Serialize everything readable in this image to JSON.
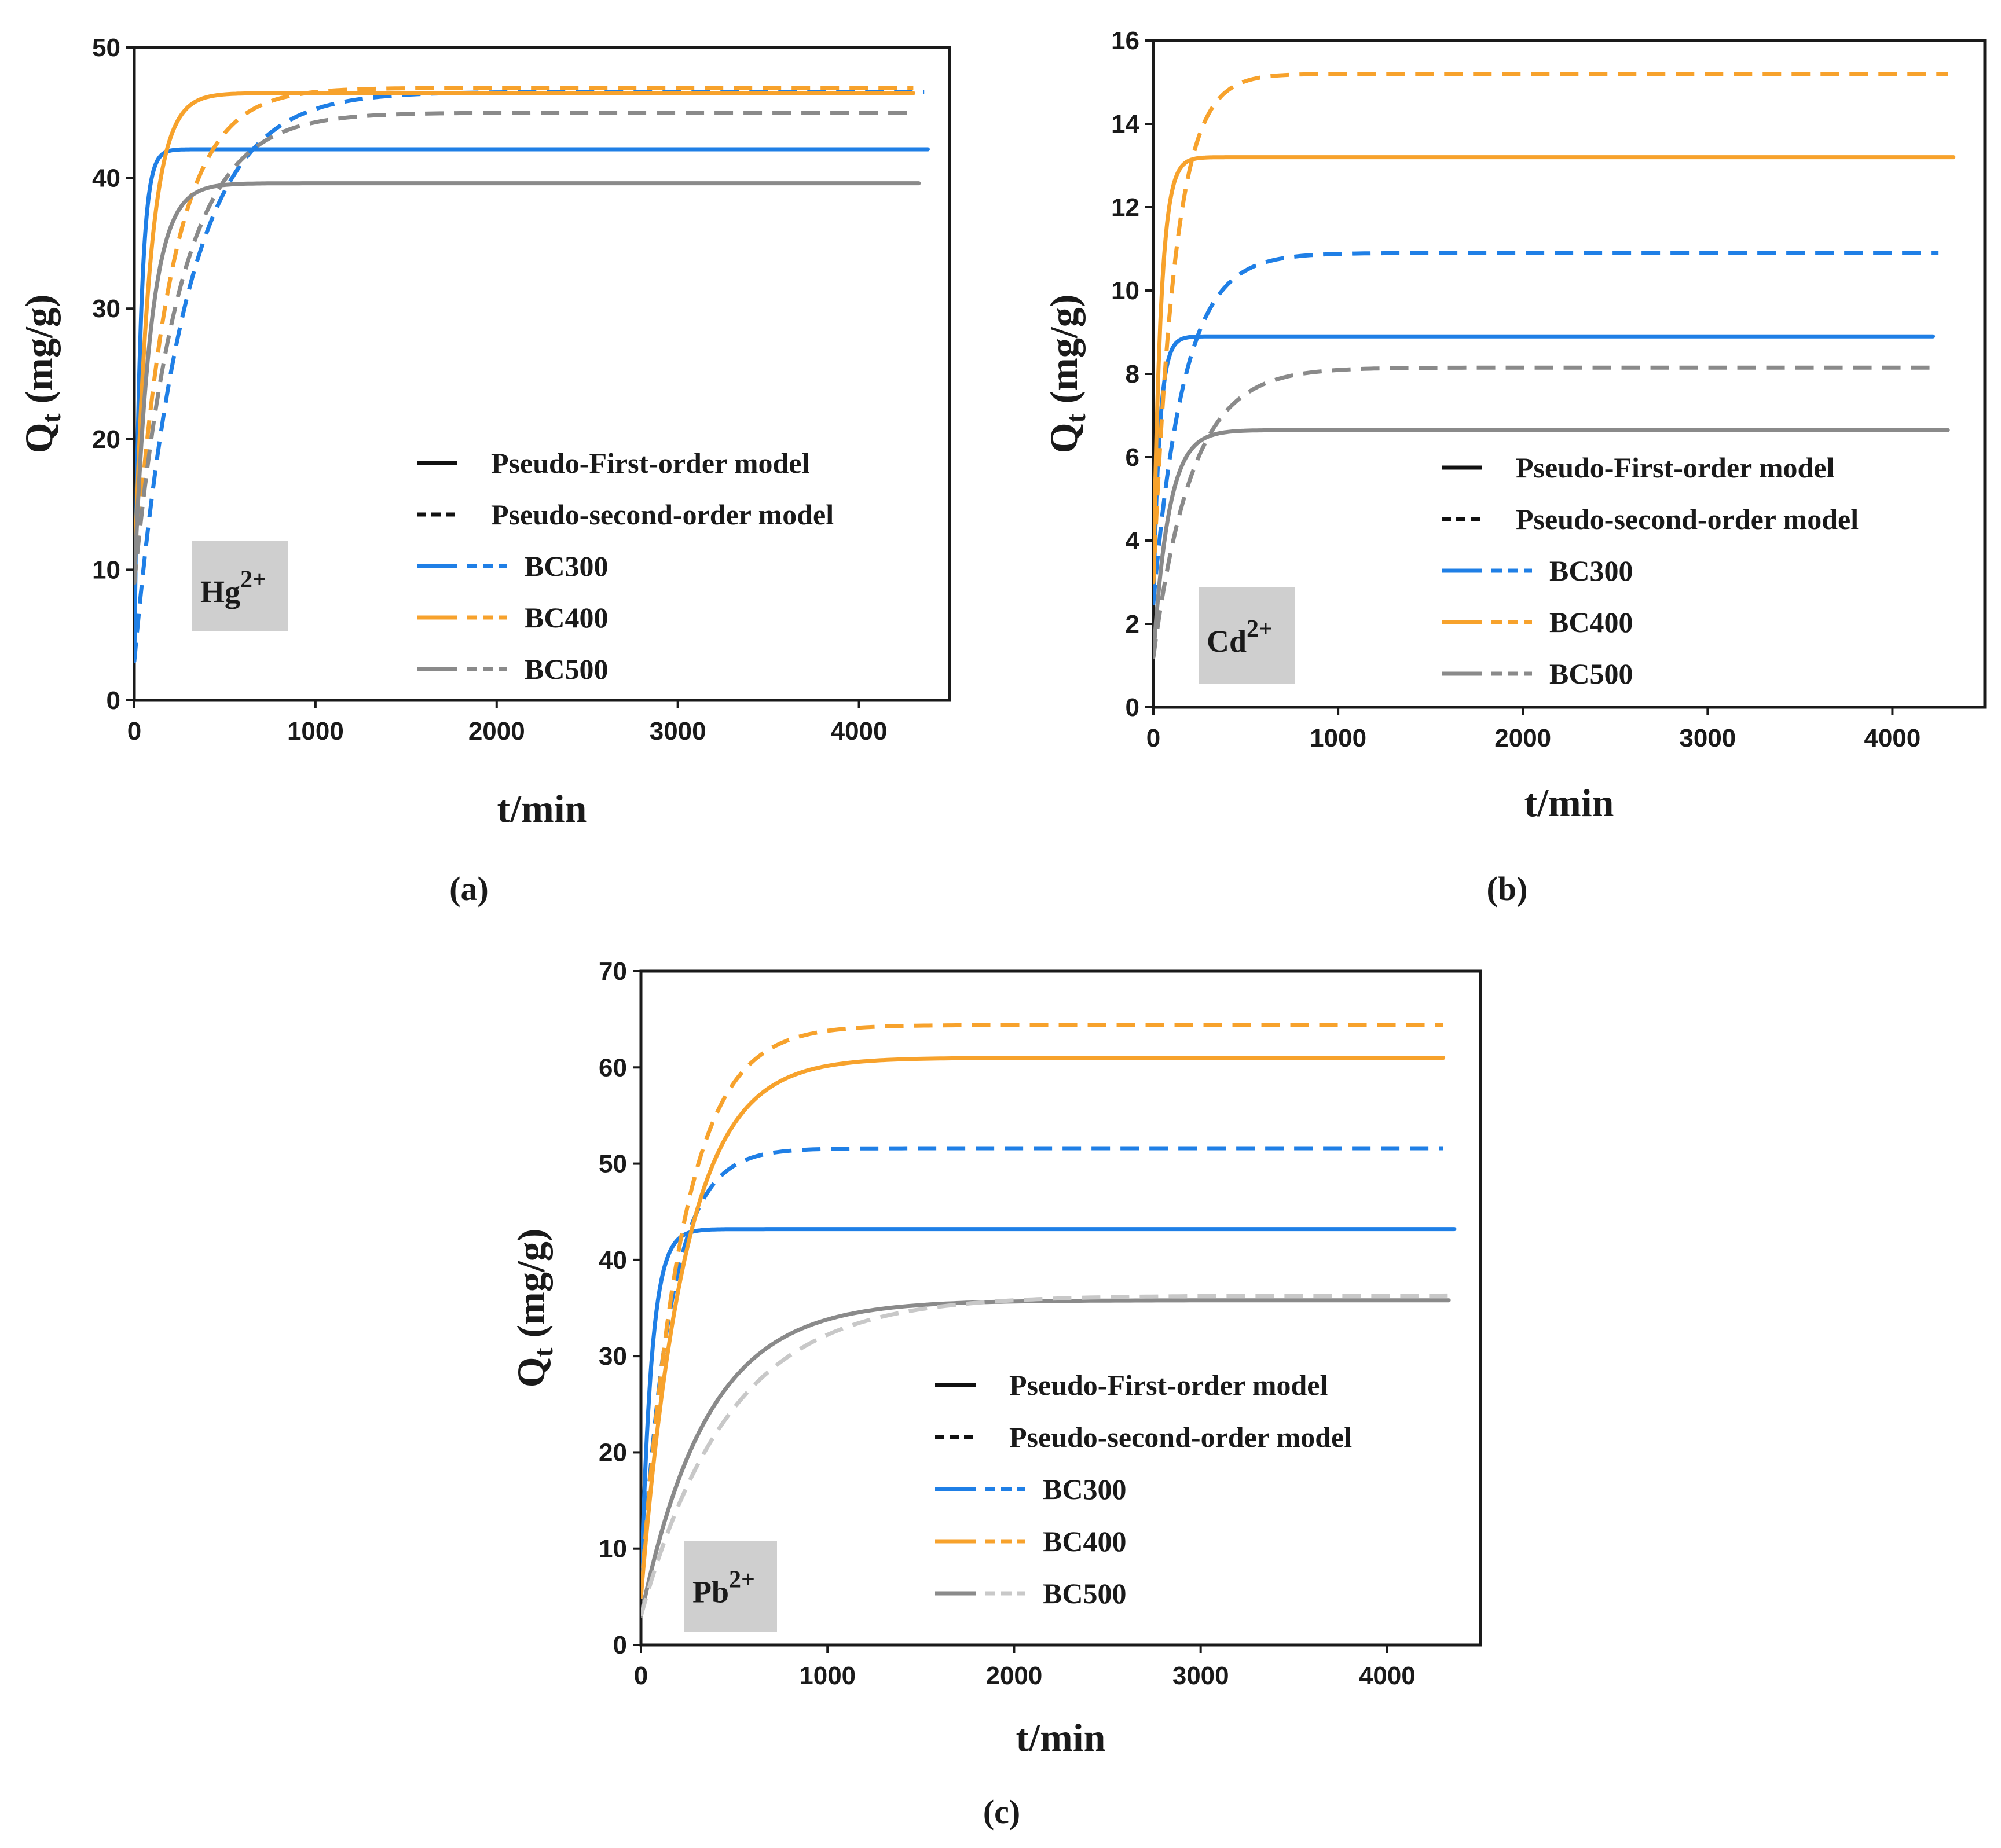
{
  "colors": {
    "BC300": "#1f7fe6",
    "BC400": "#f7a22c",
    "BC500": "#8a8a8a",
    "BC500_pso_panel_c": "#c8c8c8",
    "ion_box": "#cfcfcf",
    "axis": "#1a1a1a"
  },
  "legend_labels": {
    "pfo": "Pseudo-First-order model",
    "pso": "Pseudo-second-order model"
  },
  "chart_data": [
    {
      "id": "a",
      "type": "line",
      "caption": "(a)",
      "ion_base": "Hg",
      "ion_charge": "2+",
      "xlabel": "t/min",
      "ylabel_main": "Q",
      "ylabel_sub": "t",
      "ylabel_rest": " (mg/g)",
      "xlim": [
        0,
        4500
      ],
      "ylim": [
        0,
        50
      ],
      "xticks": [
        0,
        1000,
        2000,
        3000,
        4000
      ],
      "yticks": [
        0,
        10,
        20,
        30,
        40,
        50
      ],
      "xtick_labels": [
        "0",
        "1000",
        "2000",
        "3000",
        "4000"
      ],
      "ytick_labels": [
        "0",
        "10",
        "20",
        "30",
        "40",
        "50"
      ],
      "series": [
        {
          "name": "BC300",
          "model": "PFO",
          "qe": 42.2,
          "k": 0.03,
          "q0": 3,
          "x_end": 4380
        },
        {
          "name": "BC300",
          "model": "PSO",
          "qe": 46.6,
          "k": 0.0035,
          "q0": 3,
          "x_end": 4360
        },
        {
          "name": "BC400",
          "model": "PFO",
          "qe": 46.5,
          "k": 0.012,
          "q0": 9,
          "x_end": 4300
        },
        {
          "name": "BC400",
          "model": "PSO",
          "qe": 46.9,
          "k": 0.0048,
          "q0": 9,
          "x_end": 4300
        },
        {
          "name": "BC500",
          "model": "PFO",
          "qe": 39.6,
          "k": 0.011,
          "q0": 9,
          "x_end": 4330
        },
        {
          "name": "BC500",
          "model": "PSO",
          "qe": 45.0,
          "k": 0.0039,
          "q0": 9,
          "x_end": 4300
        }
      ],
      "legend_rows": [
        {
          "label": "Pseudo-First-order model",
          "kind": "pfo"
        },
        {
          "label": "Pseudo-second-order model",
          "kind": "pso"
        },
        {
          "label": "BC300",
          "kind": "BC300"
        },
        {
          "label": "BC400",
          "kind": "BC400"
        },
        {
          "label": "BC500",
          "kind": "BC500"
        }
      ]
    },
    {
      "id": "b",
      "type": "line",
      "caption": "(b)",
      "ion_base": "Cd",
      "ion_charge": "2+",
      "xlabel": "t/min",
      "ylabel_main": "Q",
      "ylabel_sub": "t",
      "ylabel_rest": " (mg/g)",
      "xlim": [
        0,
        4500
      ],
      "ylim": [
        0,
        16
      ],
      "xticks": [
        0,
        1000,
        2000,
        3000,
        4000
      ],
      "yticks": [
        0,
        2,
        4,
        6,
        8,
        10,
        12,
        14,
        16
      ],
      "xtick_labels": [
        "0",
        "1000",
        "2000",
        "3000",
        "4000"
      ],
      "ytick_labels": [
        "0",
        "2",
        "4",
        "6",
        "8",
        "10",
        "12",
        "14",
        "16"
      ],
      "series": [
        {
          "name": "BC300",
          "model": "PFO",
          "qe": 8.9,
          "k": 0.03,
          "q0": 2.5,
          "x_end": 4220
        },
        {
          "name": "BC300",
          "model": "PSO",
          "qe": 10.9,
          "k": 0.006,
          "q0": 2.5,
          "x_end": 4250
        },
        {
          "name": "BC400",
          "model": "PFO",
          "qe": 13.2,
          "k": 0.025,
          "q0": 3,
          "x_end": 4330
        },
        {
          "name": "BC400",
          "model": "PSO",
          "qe": 15.2,
          "k": 0.0085,
          "q0": 3,
          "x_end": 4300
        },
        {
          "name": "BC500",
          "model": "PFO",
          "qe": 6.65,
          "k": 0.012,
          "q0": 1.2,
          "x_end": 4300
        },
        {
          "name": "BC500",
          "model": "PSO",
          "qe": 8.15,
          "k": 0.0048,
          "q0": 1.2,
          "x_end": 4250
        }
      ],
      "legend_rows": [
        {
          "label": "Pseudo-First-order model",
          "kind": "pfo"
        },
        {
          "label": "Pseudo-second-order model",
          "kind": "pso"
        },
        {
          "label": "BC300",
          "kind": "BC300"
        },
        {
          "label": "BC400",
          "kind": "BC400"
        },
        {
          "label": "BC500",
          "kind": "BC500"
        }
      ]
    },
    {
      "id": "c",
      "type": "line",
      "caption": "(c)",
      "ion_base": "Pb",
      "ion_charge": "2+",
      "xlabel": "t/min",
      "ylabel_main": "Q",
      "ylabel_sub": "t",
      "ylabel_rest": " (mg/g)",
      "xlim": [
        0,
        4500
      ],
      "ylim": [
        0,
        70
      ],
      "xticks": [
        0,
        1000,
        2000,
        3000,
        4000
      ],
      "yticks": [
        0,
        10,
        20,
        30,
        40,
        50,
        60,
        70
      ],
      "xtick_labels": [
        "0",
        "1000",
        "2000",
        "3000",
        "4000"
      ],
      "ytick_labels": [
        "0",
        "10",
        "20",
        "30",
        "40",
        "50",
        "60",
        "70"
      ],
      "series": [
        {
          "name": "BC300",
          "model": "PFO",
          "qe": 43.2,
          "k": 0.018,
          "q0": 5,
          "x_end": 4360
        },
        {
          "name": "BC300",
          "model": "PSO",
          "qe": 51.6,
          "k": 0.0065,
          "q0": 5,
          "x_end": 4300
        },
        {
          "name": "BC400",
          "model": "PFO",
          "qe": 61.0,
          "k": 0.0042,
          "q0": 5,
          "x_end": 4300
        },
        {
          "name": "BC400",
          "model": "PSO",
          "qe": 64.4,
          "k": 0.0046,
          "q0": 5,
          "x_end": 4300
        },
        {
          "name": "BC500",
          "model": "PFO",
          "qe": 35.8,
          "k": 0.0028,
          "q0": 3,
          "x_end": 4330
        },
        {
          "name": "BC500",
          "model": "PSO",
          "qe": 36.3,
          "k": 0.0021,
          "q0": 3,
          "x_end": 4330
        }
      ],
      "legend_rows": [
        {
          "label": "Pseudo-First-order model",
          "kind": "pfo"
        },
        {
          "label": "Pseudo-second-order model",
          "kind": "pso"
        },
        {
          "label": "BC300",
          "kind": "BC300"
        },
        {
          "label": "BC400",
          "kind": "BC400"
        },
        {
          "label": "BC500",
          "kind": "BC500"
        }
      ]
    }
  ]
}
